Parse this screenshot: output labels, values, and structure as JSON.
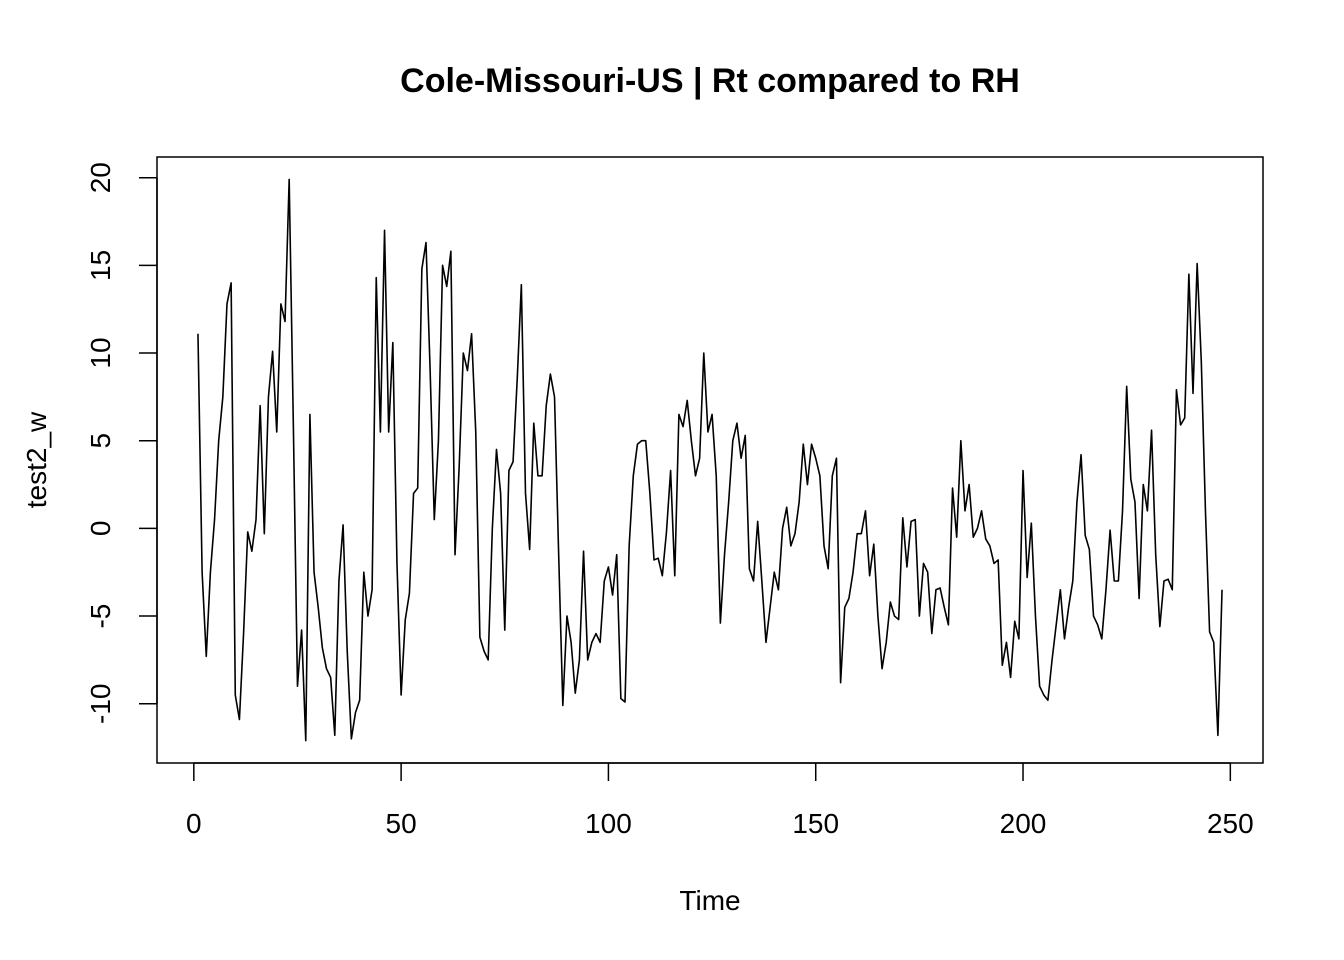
{
  "chart_data": {
    "type": "line",
    "title": "Cole-Missouri-US | Rt compared to RH",
    "x_label": "Time",
    "y_label": "test2_w",
    "color": "#000000",
    "x": [
      1,
      2,
      3,
      4,
      5,
      6,
      7,
      8,
      9,
      10,
      11,
      12,
      13,
      14,
      15,
      16,
      17,
      18,
      19,
      20,
      21,
      22,
      23,
      24,
      25,
      26,
      27,
      28,
      29,
      30,
      31,
      32,
      33,
      34,
      35,
      36,
      37,
      38,
      39,
      40,
      41,
      42,
      43,
      44,
      45,
      46,
      47,
      48,
      49,
      50,
      51,
      52,
      53,
      54,
      55,
      56,
      57,
      58,
      59,
      60,
      61,
      62,
      63,
      64,
      65,
      66,
      67,
      68,
      69,
      70,
      71,
      72,
      73,
      74,
      75,
      76,
      77,
      78,
      79,
      80,
      81,
      82,
      83,
      84,
      85,
      86,
      87,
      88,
      89,
      90,
      91,
      92,
      93,
      94,
      95,
      96,
      97,
      98,
      99,
      100,
      101,
      102,
      103,
      104,
      105,
      106,
      107,
      108,
      109,
      110,
      111,
      112,
      113,
      114,
      115,
      116,
      117,
      118,
      119,
      120,
      121,
      122,
      123,
      124,
      125,
      126,
      127,
      128,
      129,
      130,
      131,
      132,
      133,
      134,
      135,
      136,
      137,
      138,
      139,
      140,
      141,
      142,
      143,
      144,
      145,
      146,
      147,
      148,
      149,
      150,
      151,
      152,
      153,
      154,
      155,
      156,
      157,
      158,
      159,
      160,
      161,
      162,
      163,
      164,
      165,
      166,
      167,
      168,
      169,
      170,
      171,
      172,
      173,
      174,
      175,
      176,
      177,
      178,
      179,
      180,
      181,
      182,
      183,
      184,
      185,
      186,
      187,
      188,
      189,
      190,
      191,
      192,
      193,
      194,
      195,
      196,
      197,
      198,
      199,
      200,
      201,
      202,
      203,
      204,
      205,
      206,
      207,
      208,
      209,
      210,
      211,
      212,
      213,
      214,
      215,
      216,
      217,
      218,
      219,
      220,
      221,
      222,
      223,
      224,
      225,
      226,
      227,
      228,
      229,
      230,
      231,
      232,
      233,
      234,
      235,
      236,
      237,
      238,
      239,
      240,
      241,
      242,
      243,
      244,
      245,
      246,
      247,
      248
    ],
    "values": [
      11.1,
      -2.5,
      -7.3,
      -2.5,
      0.5,
      5.0,
      7.5,
      12.8,
      14.0,
      -9.5,
      -10.9,
      -6.0,
      -0.2,
      -1.3,
      0.5,
      7.0,
      -0.3,
      7.5,
      10.1,
      5.5,
      12.8,
      11.8,
      19.9,
      6.0,
      -9.0,
      -5.8,
      -12.1,
      6.5,
      -2.5,
      -4.5,
      -6.8,
      -8.0,
      -8.5,
      -11.8,
      -3.0,
      0.2,
      -7.0,
      -12.0,
      -10.5,
      -9.8,
      -2.5,
      -5.0,
      -3.5,
      14.3,
      5.5,
      17.0,
      5.5,
      10.6,
      -2.0,
      -9.5,
      -5.2,
      -3.7,
      2.0,
      2.3,
      14.8,
      16.3,
      9.0,
      0.5,
      5.0,
      15.0,
      13.8,
      15.8,
      -1.5,
      3.5,
      10.0,
      9.0,
      11.1,
      5.5,
      -6.2,
      -7.0,
      -7.5,
      0.0,
      4.5,
      2.0,
      -5.8,
      3.3,
      3.8,
      8.5,
      13.9,
      2.0,
      -1.2,
      6.0,
      3.0,
      3.0,
      7.0,
      8.8,
      7.5,
      -1.5,
      -10.1,
      -5.0,
      -6.5,
      -9.4,
      -7.5,
      -1.3,
      -7.5,
      -6.5,
      -6.0,
      -6.5,
      -3.0,
      -2.2,
      -3.8,
      -1.5,
      -9.7,
      -9.9,
      -1.0,
      3.0,
      4.8,
      5.0,
      5.0,
      2.0,
      -1.8,
      -1.7,
      -2.7,
      -0.2,
      3.3,
      -2.7,
      6.5,
      5.8,
      7.3,
      5.0,
      3.0,
      4.0,
      10.0,
      5.5,
      6.5,
      3.0,
      -5.4,
      -1.5,
      1.5,
      5.0,
      6.0,
      4.0,
      5.3,
      -2.3,
      -3.0,
      0.4,
      -3.0,
      -6.5,
      -4.5,
      -2.5,
      -3.5,
      0.0,
      1.2,
      -1.0,
      -0.3,
      1.5,
      4.8,
      2.5,
      4.8,
      4.0,
      3.0,
      -1.0,
      -2.3,
      3.0,
      4.0,
      -8.8,
      -4.5,
      -4.0,
      -2.5,
      -0.3,
      -0.3,
      1.0,
      -2.7,
      -0.9,
      -5.0,
      -8.0,
      -6.5,
      -4.2,
      -5.0,
      -5.2,
      0.6,
      -2.2,
      0.4,
      0.5,
      -5.0,
      -2.0,
      -2.5,
      -6.0,
      -3.5,
      -3.4,
      -4.5,
      -5.5,
      2.3,
      -0.5,
      5.0,
      1.0,
      2.5,
      -0.5,
      0.0,
      1.0,
      -0.6,
      -1.0,
      -2.0,
      -1.8,
      -7.8,
      -6.5,
      -8.5,
      -5.3,
      -6.3,
      3.3,
      -2.8,
      0.3,
      -5.0,
      -9.0,
      -9.5,
      -9.8,
      -7.5,
      -5.5,
      -3.5,
      -6.3,
      -4.5,
      -3.0,
      1.5,
      4.2,
      -0.4,
      -1.2,
      -5.0,
      -5.5,
      -6.3,
      -3.5,
      -0.1,
      -3.0,
      -3.0,
      1.0,
      8.1,
      2.8,
      1.5,
      -4.0,
      2.5,
      1.0,
      5.6,
      -1.5,
      -5.6,
      -3.0,
      -2.9,
      -3.5,
      7.9,
      5.9,
      6.3,
      14.5,
      7.7,
      15.1,
      9.5,
      1.0,
      -5.9,
      -6.5,
      -11.8,
      -3.5
    ],
    "xlim": [
      -8.88,
      257.88
    ],
    "ylim": [
      -13.38,
      21.18
    ],
    "xticks": [
      0,
      50,
      100,
      150,
      200,
      250
    ],
    "yticks": [
      -10,
      -5,
      0,
      5,
      10,
      15,
      20
    ]
  }
}
